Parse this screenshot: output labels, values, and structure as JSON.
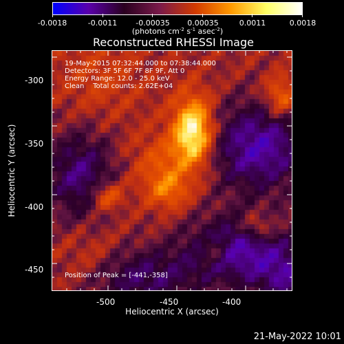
{
  "colorbar": {
    "tick_labels": [
      "-0.0018",
      "-0.0011",
      "-0.00035",
      "0.00035",
      "0.0011",
      "0.0018"
    ],
    "units_main": "(photons cm",
    "units_exp1": "-2",
    "units_mid": " s",
    "units_exp2": "-1",
    "units_mid2": " asec",
    "units_exp3": "-2",
    "units_end": ")",
    "colors": [
      "#0000ff",
      "#5a00aa",
      "#2a0020",
      "#7a1a4a",
      "#d23a00",
      "#ff9a00",
      "#ffff66",
      "#ffffff"
    ]
  },
  "title": "Reconstructed RHESSI Image",
  "overlay": {
    "line1": "19-May-2015 07:32:44.000 to 07:38:44.000",
    "line2": "Detectors: 3F 5F 6F 7F 8F 9F, Att 0",
    "line3": "Energy Range: 12.0 - 25.0 keV",
    "line4": "Clean    Total counts: 2.62E+04",
    "peak": "Position of Peak = [-441,-358]"
  },
  "axes": {
    "xlabel": "Heliocentric X (arcsec)",
    "ylabel": "Heliocentric Y (arcsec)",
    "x_ticks": [
      "-500",
      "-450",
      "-400"
    ],
    "y_ticks": [
      "-300",
      "-350",
      "-400",
      "-450"
    ],
    "xlim": [
      -541,
      -366
    ],
    "ylim": [
      -470,
      -295
    ]
  },
  "footer_date": "21-May-2022 10:01",
  "image_features": {
    "peak_position": [
      -441,
      -358
    ]
  }
}
